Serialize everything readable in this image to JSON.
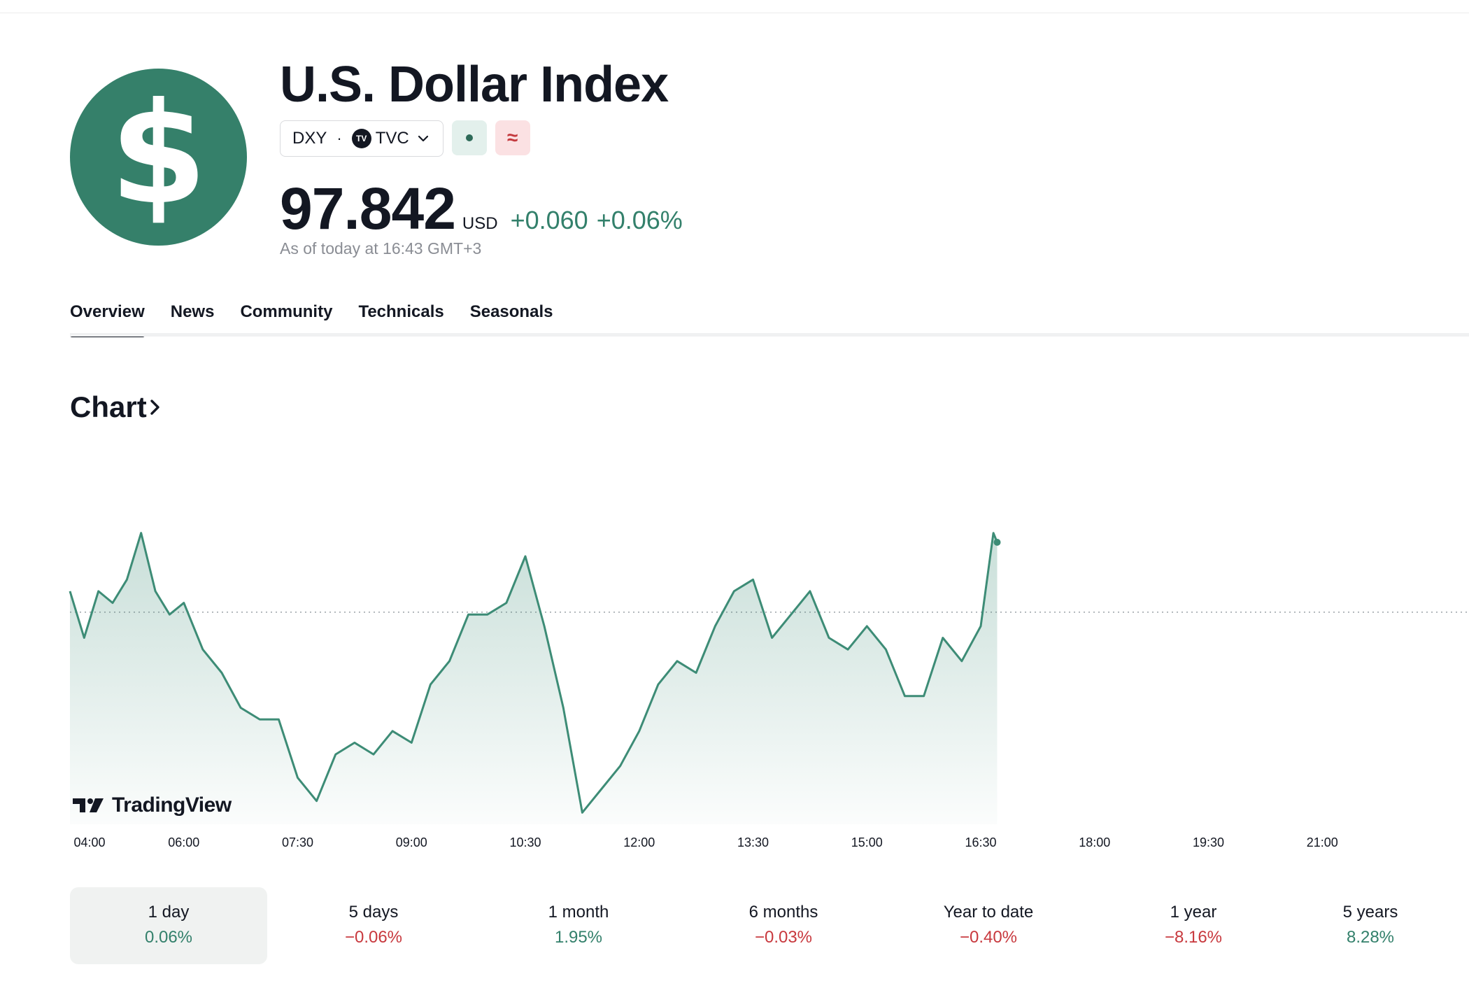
{
  "instrument": {
    "logo_glyph": "$",
    "title": "U.S. Dollar Index",
    "symbol": "DXY",
    "separator": "·",
    "exchange_icon_text": "TV",
    "exchange": "TVC",
    "price": "97.842",
    "currency": "USD",
    "change": "+0.060",
    "change_pct": "+0.06%",
    "as_of": "As of today at 16:43 GMT+3",
    "delay_badge": "≈"
  },
  "tabs": [
    {
      "label": "Overview",
      "active": true
    },
    {
      "label": "News"
    },
    {
      "label": "Community"
    },
    {
      "label": "Technicals"
    },
    {
      "label": "Seasonals"
    }
  ],
  "chart_section": {
    "heading": "Chart"
  },
  "watermark": {
    "text": "TradingView"
  },
  "colors": {
    "accent": "#35806a",
    "line": "#3d8c76",
    "positive": "#33806b",
    "negative": "#c8393e"
  },
  "chart_data": {
    "type": "area",
    "x_ticks": [
      "04:00",
      "06:00",
      "07:30",
      "09:00",
      "10:30",
      "12:00",
      "13:30",
      "15:00",
      "16:30",
      "18:00",
      "19:30",
      "21:00"
    ],
    "x": [
      "04:00",
      "04:15",
      "04:30",
      "04:45",
      "05:00",
      "05:15",
      "05:30",
      "05:45",
      "06:00",
      "06:15",
      "06:30",
      "06:45",
      "07:00",
      "07:15",
      "07:30",
      "07:45",
      "08:00",
      "08:15",
      "08:30",
      "08:45",
      "09:00",
      "09:15",
      "09:30",
      "09:45",
      "10:00",
      "10:15",
      "10:30",
      "10:45",
      "11:00",
      "11:15",
      "11:30",
      "11:45",
      "12:00",
      "12:15",
      "12:30",
      "12:45",
      "13:00",
      "13:15",
      "13:30",
      "13:45",
      "14:00",
      "14:15",
      "14:30",
      "14:45",
      "15:00",
      "15:15",
      "15:30",
      "15:45",
      "16:00",
      "16:15",
      "16:30",
      "16:40",
      "16:43"
    ],
    "values": [
      97.8,
      97.76,
      97.8,
      97.79,
      97.81,
      97.85,
      97.8,
      97.78,
      97.79,
      97.75,
      97.73,
      97.7,
      97.69,
      97.69,
      97.64,
      97.62,
      97.66,
      97.67,
      97.66,
      97.68,
      97.67,
      97.72,
      97.74,
      97.78,
      97.78,
      97.79,
      97.83,
      97.77,
      97.7,
      97.61,
      97.63,
      97.65,
      97.68,
      97.72,
      97.74,
      97.73,
      97.77,
      97.8,
      97.81,
      97.76,
      97.78,
      97.8,
      97.76,
      97.75,
      97.77,
      97.75,
      97.71,
      97.71,
      97.76,
      97.74,
      97.77,
      97.85,
      97.842
    ],
    "reference_line": 97.782,
    "y_range": [
      97.6,
      97.86
    ],
    "grid": false,
    "legend": "none"
  },
  "periods": [
    {
      "label": "1 day",
      "value": "0.06%",
      "sign": "pos",
      "active": true
    },
    {
      "label": "5 days",
      "value": "−0.06%",
      "sign": "neg"
    },
    {
      "label": "1 month",
      "value": "1.95%",
      "sign": "pos"
    },
    {
      "label": "6 months",
      "value": "−0.03%",
      "sign": "neg"
    },
    {
      "label": "Year to date",
      "value": "−0.40%",
      "sign": "neg"
    },
    {
      "label": "1 year",
      "value": "−8.16%",
      "sign": "neg"
    },
    {
      "label": "5 years",
      "value": "8.28%",
      "sign": "pos"
    }
  ]
}
